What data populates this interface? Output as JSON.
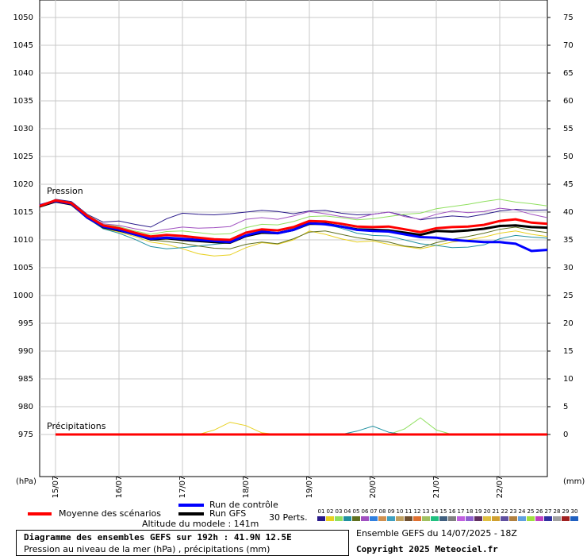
{
  "chart_data": {
    "type": "line",
    "pressure_label": "Pression",
    "precip_label": "Précipitations",
    "y_unit": "(hPa)",
    "y2_unit": "(mm)",
    "x": [
      0,
      6,
      12,
      18,
      24,
      30,
      36,
      42,
      48,
      54,
      60,
      66,
      72,
      78,
      84,
      90,
      96,
      102,
      108,
      114,
      120,
      126,
      132,
      138,
      144,
      150,
      156,
      162,
      168,
      174,
      180,
      186,
      192
    ],
    "x_precip": [
      6,
      12,
      18,
      24,
      30,
      36,
      42,
      48,
      54,
      60,
      66,
      72,
      78,
      84,
      90,
      96,
      102,
      108,
      114,
      120,
      126,
      132,
      138,
      144,
      150,
      156,
      162,
      168,
      174,
      180,
      186,
      192
    ],
    "xlim": [
      0,
      192
    ],
    "xticks": [
      {
        "value": 6,
        "label": "15/07"
      },
      {
        "value": 30,
        "label": "16/07"
      },
      {
        "value": 54,
        "label": "17/07"
      },
      {
        "value": 78,
        "label": "18/07"
      },
      {
        "value": 102,
        "label": "19/07"
      },
      {
        "value": 126,
        "label": "20/07"
      },
      {
        "value": 150,
        "label": "21/07"
      },
      {
        "value": 174,
        "label": "22/07"
      }
    ],
    "ylim": [
      967.43,
      1053.14
    ],
    "yticks": [
      975,
      980,
      985,
      990,
      995,
      1000,
      1005,
      1010,
      1015,
      1020,
      1025,
      1030,
      1035,
      1040,
      1045,
      1050
    ],
    "y2lim": [
      -7.57,
      78.14
    ],
    "y2ticks": [
      0,
      5,
      10,
      15,
      20,
      25,
      30,
      35,
      40,
      45,
      50,
      55,
      60,
      65,
      70,
      75
    ],
    "grid": true,
    "series": [
      {
        "name": "Moyenne des scénarios",
        "color": "#ff0000",
        "values": [
          1016.1,
          1017.1,
          1016.6,
          1014.3,
          1012.6,
          1012.1,
          1011.3,
          1010.6,
          1010.9,
          1010.7,
          1010.4,
          1010.1,
          1010.0,
          1011.3,
          1011.9,
          1011.7,
          1012.3,
          1013.4,
          1013.3,
          1012.9,
          1012.4,
          1012.3,
          1012.4,
          1011.9,
          1011.4,
          1012.1,
          1012.3,
          1012.4,
          1012.7,
          1013.4,
          1013.7,
          1013.1,
          1012.9
        ],
        "precip": [
          0,
          0,
          0,
          0,
          0,
          0,
          0,
          0,
          0,
          0,
          0,
          0,
          0,
          0,
          0,
          0,
          0,
          0,
          0,
          0,
          0,
          0,
          0,
          0,
          0,
          0,
          0,
          0,
          0,
          0,
          0,
          0
        ]
      },
      {
        "name": "Run de contrôle",
        "color": "#0000ff",
        "values": [
          1016.2,
          1017.0,
          1016.5,
          1014.0,
          1012.4,
          1011.8,
          1011.0,
          1010.2,
          1010.4,
          1010.2,
          1010.0,
          1009.8,
          1009.6,
          1010.8,
          1011.5,
          1011.2,
          1011.8,
          1013.0,
          1012.8,
          1012.4,
          1011.8,
          1011.6,
          1011.5,
          1011.0,
          1010.5,
          1010.4,
          1010.0,
          1009.8,
          1009.6,
          1009.6,
          1009.3,
          1008.0,
          1008.2
        ]
      },
      {
        "name": "Run GFS",
        "color": "#000000",
        "values": [
          1016.0,
          1016.9,
          1016.4,
          1014.1,
          1012.3,
          1011.7,
          1011.0,
          1010.1,
          1010.3,
          1010.0,
          1009.8,
          1009.6,
          1009.5,
          1010.7,
          1011.3,
          1011.2,
          1011.8,
          1012.9,
          1012.9,
          1012.4,
          1011.9,
          1011.8,
          1011.7,
          1011.3,
          1010.9,
          1011.6,
          1011.5,
          1011.7,
          1012.0,
          1012.5,
          1012.6,
          1012.3,
          1012.2
        ]
      }
    ],
    "perturbations_label": "30 Perts.",
    "perturbations": [
      {
        "label": "01",
        "color": "#2a1a8a",
        "values": [
          1016.0,
          1017.3,
          1016.9,
          1014.6,
          1013.2,
          1013.4,
          1012.8,
          1012.3,
          1013.8,
          1014.8,
          1014.6,
          1014.5,
          1014.7,
          1015.0,
          1015.3,
          1015.1,
          1014.7,
          1015.2,
          1015.3,
          1014.8,
          1014.5,
          1014.6,
          1015.0,
          1014.4,
          1013.6,
          1014.0,
          1014.3,
          1014.1,
          1014.6,
          1015.2,
          1015.5,
          1015.3,
          1015.4
        ]
      },
      {
        "label": "02",
        "color": "#e8d020",
        "values": [
          1016.2,
          1016.9,
          1016.2,
          1013.8,
          1012.1,
          1011.4,
          1010.6,
          1009.6,
          1009.2,
          1008.4,
          1007.5,
          1007.1,
          1007.3,
          1008.6,
          1009.5,
          1009.2,
          1010.0,
          1011.6,
          1011.0,
          1010.2,
          1009.6,
          1009.8,
          1009.2,
          1008.8,
          1008.4,
          1009.0,
          1009.6,
          1010.0,
          1010.5,
          1011.2,
          1011.6,
          1011.0,
          1010.6
        ],
        "precip": [
          0,
          0,
          0,
          0,
          0,
          0,
          0,
          0,
          0,
          0,
          0.8,
          2.2,
          1.6,
          0.3,
          0,
          0,
          0,
          0,
          0,
          0,
          0,
          0,
          0,
          0,
          0,
          0,
          0,
          0,
          0,
          0,
          0,
          0
        ]
      },
      {
        "label": "03",
        "color": "#90e060",
        "values": [
          1016.1,
          1017.0,
          1016.7,
          1014.5,
          1012.9,
          1012.4,
          1011.6,
          1011.0,
          1011.5,
          1011.6,
          1011.3,
          1011.0,
          1011.1,
          1012.2,
          1012.8,
          1012.7,
          1013.3,
          1014.2,
          1014.3,
          1014.0,
          1013.6,
          1013.8,
          1014.2,
          1014.6,
          1014.8,
          1015.6,
          1016.0,
          1016.4,
          1016.9,
          1017.3,
          1016.8,
          1016.5,
          1016.1
        ],
        "precip": [
          0,
          0,
          0,
          0,
          0,
          0,
          0,
          0,
          0,
          0,
          0,
          0,
          0,
          0,
          0,
          0,
          0,
          0,
          0,
          0,
          0,
          0,
          1.0,
          3.0,
          0.8,
          0,
          0,
          0,
          0,
          0,
          0,
          0
        ]
      },
      {
        "label": "04",
        "color": "#2090a0",
        "values": [
          1016.0,
          1017.1,
          1016.4,
          1013.9,
          1012.0,
          1011.2,
          1010.1,
          1008.8,
          1008.4,
          1008.6,
          1008.9,
          1009.2,
          1009.5,
          1010.9,
          1011.7,
          1011.6,
          1012.1,
          1013.1,
          1012.8,
          1012.1,
          1011.2,
          1010.8,
          1010.7,
          1010.0,
          1009.3,
          1009.0,
          1008.6,
          1008.7,
          1009.1,
          1010.2,
          1010.8,
          1010.5,
          1010.3
        ],
        "precip": [
          0,
          0,
          0,
          0,
          0,
          0,
          0,
          0,
          0,
          0,
          0,
          0,
          0,
          0,
          0,
          0,
          0,
          0,
          0,
          0.6,
          1.5,
          0.4,
          0,
          0,
          0,
          0,
          0,
          0,
          0,
          0,
          0,
          0
        ]
      },
      {
        "label": "05",
        "color": "#607020",
        "values": [
          1016.3,
          1017.2,
          1016.5,
          1014.1,
          1012.2,
          1011.6,
          1010.8,
          1010.0,
          1009.7,
          1009.4,
          1008.9,
          1008.5,
          1008.4,
          1009.2,
          1009.6,
          1009.3,
          1010.2,
          1011.4,
          1011.6,
          1011.0,
          1010.4,
          1010.0,
          1009.6,
          1008.9,
          1008.6,
          1009.5,
          1010.1,
          1010.6,
          1011.2,
          1011.9,
          1012.3,
          1011.7,
          1011.3
        ]
      },
      {
        "label": "06",
        "color": "#a050c0",
        "values": [
          1016.1,
          1017.0,
          1016.6,
          1014.4,
          1012.9,
          1012.6,
          1012.0,
          1011.5,
          1011.9,
          1012.3,
          1012.1,
          1012.2,
          1012.4,
          1013.7,
          1014.0,
          1013.7,
          1014.3,
          1015.1,
          1014.7,
          1014.2,
          1013.9,
          1014.6,
          1015.0,
          1014.2,
          1013.7,
          1014.6,
          1015.2,
          1014.9,
          1015.1,
          1015.7,
          1015.4,
          1014.6,
          1014.0
        ]
      },
      {
        "label": "07",
        "color": "#3080e0"
      },
      {
        "label": "08",
        "color": "#d09050"
      },
      {
        "label": "09",
        "color": "#40a0c0"
      },
      {
        "label": "10",
        "color": "#c0a060"
      },
      {
        "label": "11",
        "color": "#705030"
      },
      {
        "label": "12",
        "color": "#e07030"
      },
      {
        "label": "13",
        "color": "#a0c060"
      },
      {
        "label": "14",
        "color": "#20c080"
      },
      {
        "label": "15",
        "color": "#406080"
      },
      {
        "label": "16",
        "color": "#808080"
      },
      {
        "label": "17",
        "color": "#c060e0"
      },
      {
        "label": "18",
        "color": "#9060d0"
      },
      {
        "label": "19",
        "color": "#603060"
      },
      {
        "label": "20",
        "color": "#e0c040"
      },
      {
        "label": "21",
        "color": "#d0a030"
      },
      {
        "label": "22",
        "color": "#6050a0"
      },
      {
        "label": "23",
        "color": "#b08040"
      },
      {
        "label": "24",
        "color": "#60a0e0"
      },
      {
        "label": "25",
        "color": "#a0e040"
      },
      {
        "label": "26",
        "color": "#c040c0"
      },
      {
        "label": "27",
        "color": "#3030a0"
      },
      {
        "label": "28",
        "color": "#a0a0a0"
      },
      {
        "label": "29",
        "color": "#a02020"
      },
      {
        "label": "30",
        "color": "#2060c0"
      }
    ],
    "altitude": "Altitude du modele : 141m",
    "title": "Diagramme des ensembles GEFS sur 192h : 41.9N 12.5E",
    "subtitle": "Pression au niveau de la mer (hPa) , précipitations (mm)",
    "run_info": "Ensemble GEFS du 14/07/2025 - 18Z",
    "copyright": "Copyright 2025 Meteociel.fr"
  }
}
